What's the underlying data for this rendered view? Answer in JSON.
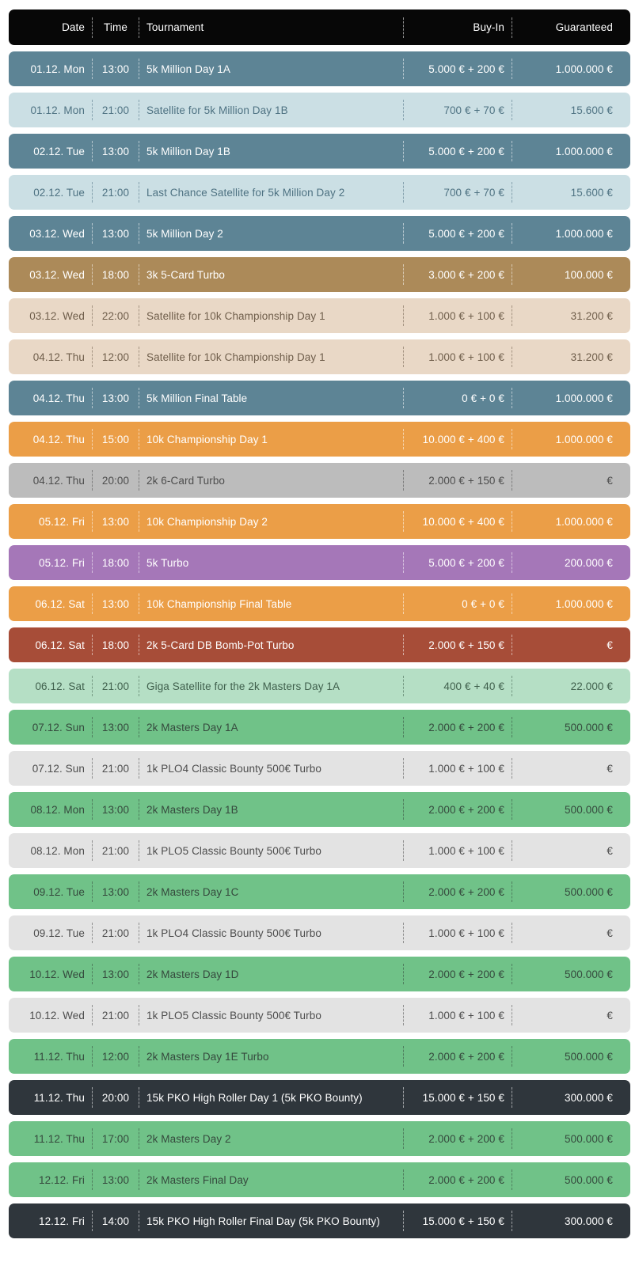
{
  "header": {
    "date": "Date",
    "time": "Time",
    "tournament": "Tournament",
    "buyin": "Buy-In",
    "guaranteed": "Guaranteed"
  },
  "palette": {
    "header": {
      "bg": "#070707",
      "text": "#ffffff"
    },
    "blue": {
      "bg": "#5d8495",
      "text": "#ffffff"
    },
    "lightblue": {
      "bg": "#cbdfe4",
      "text": "#4e7282"
    },
    "tan": {
      "bg": "#ac8a59",
      "text": "#ffffff"
    },
    "lighttan": {
      "bg": "#e9d8c6",
      "text": "#6f5e4b"
    },
    "orange": {
      "bg": "#eb9e47",
      "text": "#ffffff"
    },
    "gray": {
      "bg": "#bcbcbc",
      "text": "#4d4d4d"
    },
    "purple": {
      "bg": "#a577b8",
      "text": "#ffffff"
    },
    "red": {
      "bg": "#a74d38",
      "text": "#ffffff"
    },
    "lightgreen": {
      "bg": "#b5dfc5",
      "text": "#40604d"
    },
    "green": {
      "bg": "#70c288",
      "text": "#35493d"
    },
    "lightgray": {
      "bg": "#e3e3e3",
      "text": "#4d4d4d"
    },
    "dark": {
      "bg": "#2f363c",
      "text": "#ffffff"
    }
  },
  "rows": [
    {
      "date": "01.12. Mon",
      "time": "13:00",
      "tournament": "5k Million Day 1A",
      "buyin": "5.000 € + 200 €",
      "guaranteed": "1.000.000 €",
      "variant": "blue"
    },
    {
      "date": "01.12. Mon",
      "time": "21:00",
      "tournament": "Satellite for 5k Million Day 1B",
      "buyin": "700 € + 70 €",
      "guaranteed": "15.600 €",
      "variant": "lightblue"
    },
    {
      "date": "02.12. Tue",
      "time": "13:00",
      "tournament": "5k Million Day 1B",
      "buyin": "5.000 € + 200 €",
      "guaranteed": "1.000.000 €",
      "variant": "blue"
    },
    {
      "date": "02.12. Tue",
      "time": "21:00",
      "tournament": "Last Chance Satellite for 5k Million Day 2",
      "buyin": "700 € + 70 €",
      "guaranteed": "15.600 €",
      "variant": "lightblue"
    },
    {
      "date": "03.12. Wed",
      "time": "13:00",
      "tournament": "5k Million Day 2",
      "buyin": "5.000 € + 200 €",
      "guaranteed": "1.000.000 €",
      "variant": "blue"
    },
    {
      "date": "03.12. Wed",
      "time": "18:00",
      "tournament": "3k 5-Card Turbo",
      "buyin": "3.000 € + 200 €",
      "guaranteed": "100.000 €",
      "variant": "tan"
    },
    {
      "date": "03.12. Wed",
      "time": "22:00",
      "tournament": "Satellite for 10k Championship Day 1",
      "buyin": "1.000 € + 100 €",
      "guaranteed": "31.200 €",
      "variant": "lighttan"
    },
    {
      "date": "04.12. Thu",
      "time": "12:00",
      "tournament": "Satellite for 10k Championship Day 1",
      "buyin": "1.000 € + 100 €",
      "guaranteed": "31.200 €",
      "variant": "lighttan"
    },
    {
      "date": "04.12. Thu",
      "time": "13:00",
      "tournament": "5k Million Final Table",
      "buyin": "0 € + 0 €",
      "guaranteed": "1.000.000 €",
      "variant": "blue"
    },
    {
      "date": "04.12. Thu",
      "time": "15:00",
      "tournament": "10k Championship Day 1",
      "buyin": "10.000 € + 400 €",
      "guaranteed": "1.000.000 €",
      "variant": "orange"
    },
    {
      "date": "04.12. Thu",
      "time": "20:00",
      "tournament": "2k 6-Card Turbo",
      "buyin": "2.000 € + 150 €",
      "guaranteed": "€",
      "variant": "gray"
    },
    {
      "date": "05.12. Fri",
      "time": "13:00",
      "tournament": "10k Championship Day 2",
      "buyin": "10.000 € + 400 €",
      "guaranteed": "1.000.000 €",
      "variant": "orange"
    },
    {
      "date": "05.12. Fri",
      "time": "18:00",
      "tournament": "5k Turbo",
      "buyin": "5.000 € + 200 €",
      "guaranteed": "200.000 €",
      "variant": "purple"
    },
    {
      "date": "06.12. Sat",
      "time": "13:00",
      "tournament": "10k Championship Final Table",
      "buyin": "0 € + 0 €",
      "guaranteed": "1.000.000 €",
      "variant": "orange"
    },
    {
      "date": "06.12. Sat",
      "time": "18:00",
      "tournament": "2k 5-Card DB Bomb-Pot Turbo",
      "buyin": "2.000 € + 150 €",
      "guaranteed": "€",
      "variant": "red"
    },
    {
      "date": "06.12. Sat",
      "time": "21:00",
      "tournament": "Giga Satellite for the 2k Masters Day 1A",
      "buyin": "400 € + 40 €",
      "guaranteed": "22.000 €",
      "variant": "lightgreen"
    },
    {
      "date": "07.12. Sun",
      "time": "13:00",
      "tournament": "2k Masters Day 1A",
      "buyin": "2.000 € + 200 €",
      "guaranteed": "500.000 €",
      "variant": "green"
    },
    {
      "date": "07.12. Sun",
      "time": "21:00",
      "tournament": "1k PLO4 Classic Bounty 500€ Turbo",
      "buyin": "1.000 € + 100 €",
      "guaranteed": "€",
      "variant": "lightgray"
    },
    {
      "date": "08.12. Mon",
      "time": "13:00",
      "tournament": "2k Masters Day 1B",
      "buyin": "2.000 € + 200 €",
      "guaranteed": "500.000 €",
      "variant": "green"
    },
    {
      "date": "08.12. Mon",
      "time": "21:00",
      "tournament": "1k PLO5 Classic Bounty 500€ Turbo",
      "buyin": "1.000 € + 100 €",
      "guaranteed": "€",
      "variant": "lightgray"
    },
    {
      "date": "09.12. Tue",
      "time": "13:00",
      "tournament": "2k Masters Day 1C",
      "buyin": "2.000 € + 200 €",
      "guaranteed": "500.000 €",
      "variant": "green"
    },
    {
      "date": "09.12. Tue",
      "time": "21:00",
      "tournament": "1k PLO4 Classic Bounty 500€ Turbo",
      "buyin": "1.000 € + 100 €",
      "guaranteed": "€",
      "variant": "lightgray"
    },
    {
      "date": "10.12. Wed",
      "time": "13:00",
      "tournament": "2k Masters Day 1D",
      "buyin": "2.000 € + 200 €",
      "guaranteed": "500.000 €",
      "variant": "green"
    },
    {
      "date": "10.12. Wed",
      "time": "21:00",
      "tournament": "1k PLO5 Classic Bounty 500€ Turbo",
      "buyin": "1.000 € + 100 €",
      "guaranteed": "€",
      "variant": "lightgray"
    },
    {
      "date": "11.12. Thu",
      "time": "12:00",
      "tournament": "2k Masters Day 1E Turbo",
      "buyin": "2.000 € + 200 €",
      "guaranteed": "500.000 €",
      "variant": "green"
    },
    {
      "date": "11.12. Thu",
      "time": "20:00",
      "tournament": "15k PKO High Roller Day 1 (5k PKO Bounty)",
      "buyin": "15.000 € + 150 €",
      "guaranteed": "300.000 €",
      "variant": "dark"
    },
    {
      "date": "11.12. Thu",
      "time": "17:00",
      "tournament": "2k Masters Day 2",
      "buyin": "2.000 € + 200 €",
      "guaranteed": "500.000 €",
      "variant": "green"
    },
    {
      "date": "12.12. Fri",
      "time": "13:00",
      "tournament": "2k Masters Final Day",
      "buyin": "2.000 € + 200 €",
      "guaranteed": "500.000 €",
      "variant": "green"
    },
    {
      "date": "12.12. Fri",
      "time": "14:00",
      "tournament": "15k PKO High Roller Final Day (5k PKO Bounty)",
      "buyin": "15.000 € + 150 €",
      "guaranteed": "300.000 €",
      "variant": "dark"
    }
  ]
}
